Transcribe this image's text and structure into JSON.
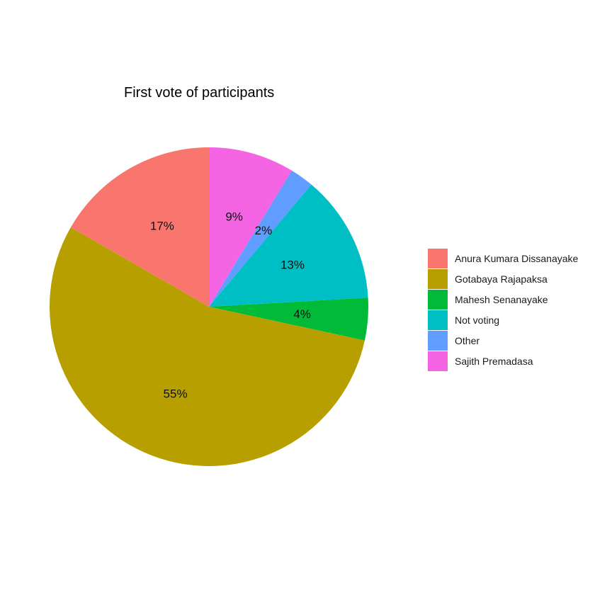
{
  "chart_data": {
    "type": "pie",
    "title": "First vote of participants",
    "start_angle_deg": 0,
    "direction": "clockwise",
    "slices": [
      {
        "label": "Sajith Premadasa",
        "value": 8.7,
        "display": "9%",
        "color": "#F564E3"
      },
      {
        "label": "Other",
        "value": 2.4,
        "display": "2%",
        "color": "#619CFF"
      },
      {
        "label": "Not voting",
        "value": 13.0,
        "display": "13%",
        "color": "#00BFC4"
      },
      {
        "label": "Mahesh Senanayake",
        "value": 4.3,
        "display": "4%",
        "color": "#00BA38"
      },
      {
        "label": "Gotabaya Rajapaksa",
        "value": 54.9,
        "display": "55%",
        "color": "#B79F00"
      },
      {
        "label": "Anura Kumara Dissanayake",
        "value": 16.7,
        "display": "17%",
        "color": "#F8766D"
      }
    ],
    "legend": {
      "position": "right",
      "entries": [
        {
          "label": "Anura Kumara Dissanayake",
          "color": "#F8766D"
        },
        {
          "label": "Gotabaya Rajapaksa",
          "color": "#B79F00"
        },
        {
          "label": "Mahesh Senanayake",
          "color": "#00BA38"
        },
        {
          "label": "Not voting",
          "color": "#00BFC4"
        },
        {
          "label": "Other",
          "color": "#619CFF"
        },
        {
          "label": "Sajith Premadasa",
          "color": "#F564E3"
        }
      ]
    }
  }
}
